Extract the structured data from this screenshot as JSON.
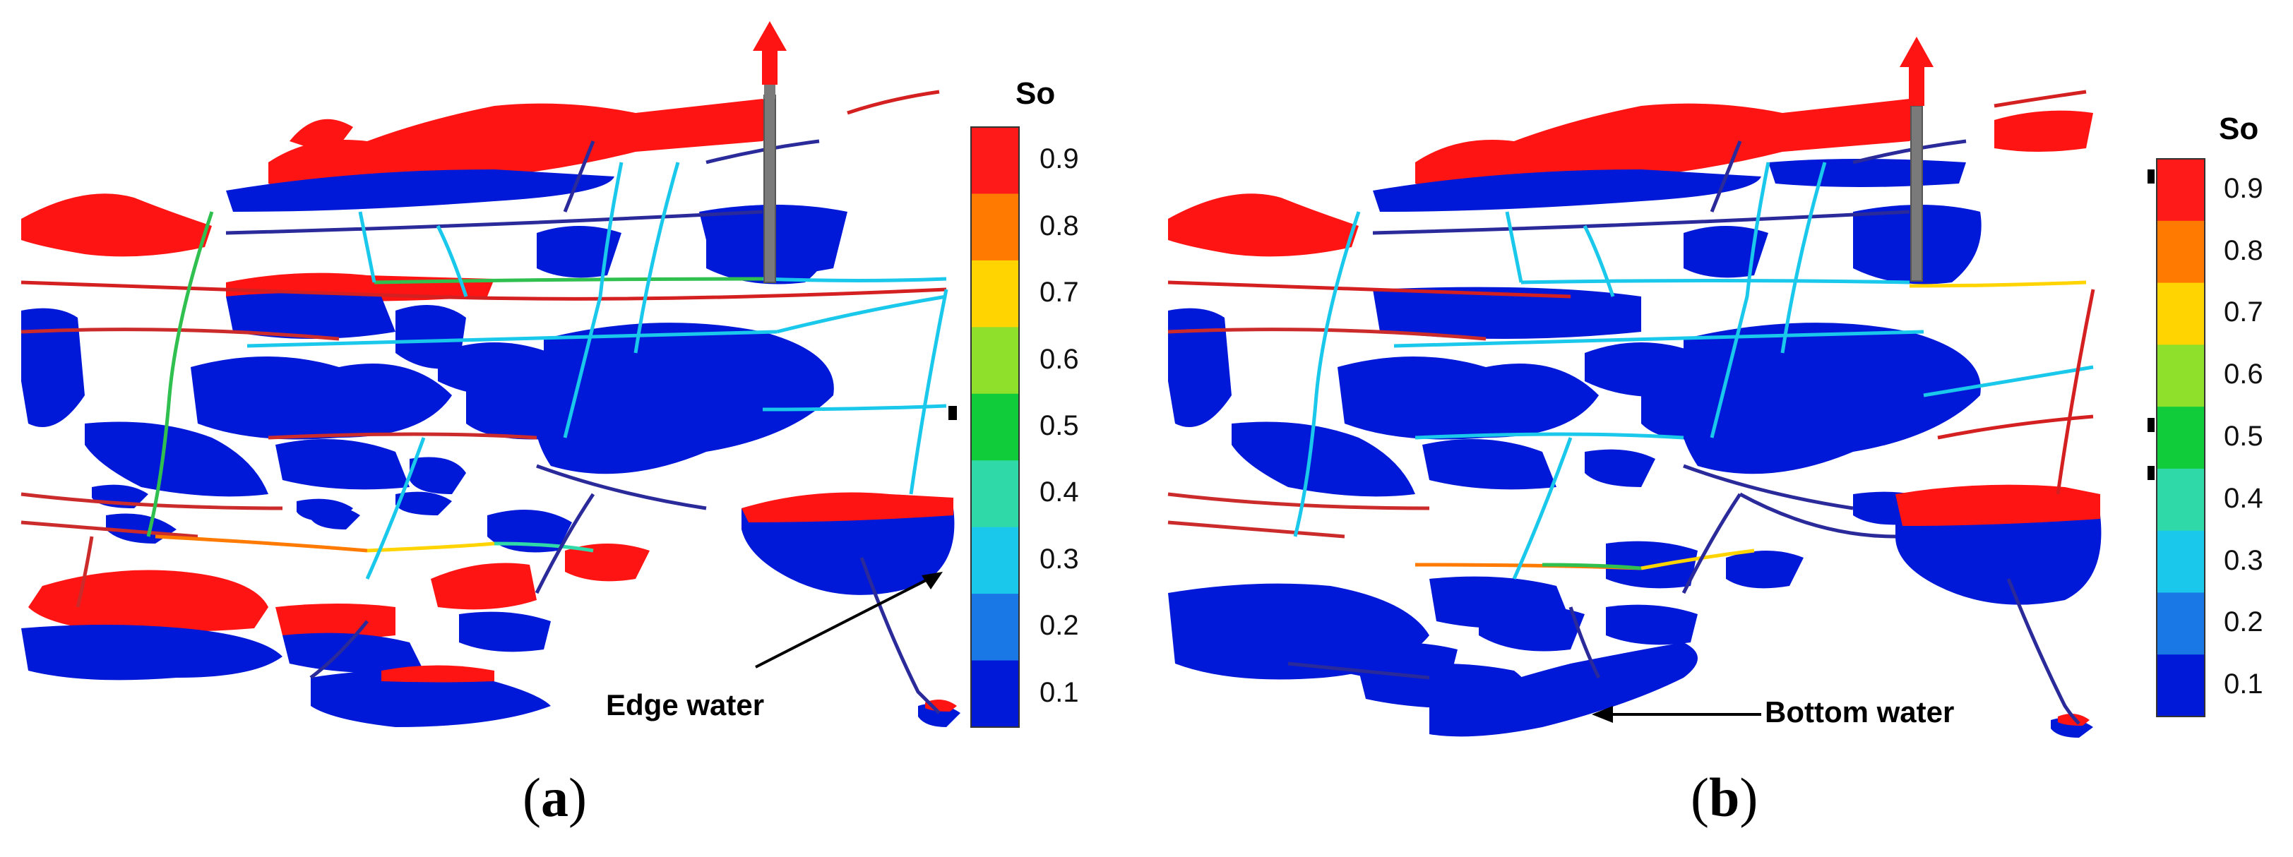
{
  "panels": [
    {
      "label_open": "(",
      "label_letter": "a",
      "label_close": ")",
      "annotation": "Edge water"
    },
    {
      "label_open": "(",
      "label_letter": "b",
      "label_close": ")",
      "annotation": "Bottom water"
    }
  ],
  "colorbar": {
    "title": "So",
    "ticks": [
      "0.9",
      "0.8",
      "0.7",
      "0.6",
      "0.5",
      "0.4",
      "0.3",
      "0.2",
      "0.1"
    ],
    "colors": [
      "#ff1a1a",
      "#ff7a00",
      "#ffd400",
      "#8ee02a",
      "#10cc3a",
      "#2fd9a8",
      "#19c8ea",
      "#1a78e6",
      "#0018d8"
    ]
  },
  "colors": {
    "red": "#ff1414",
    "blue": "#0018d8",
    "arrow": "#ff1414"
  },
  "icons": [
    "red-up-arrow-icon",
    "well-icon"
  ]
}
